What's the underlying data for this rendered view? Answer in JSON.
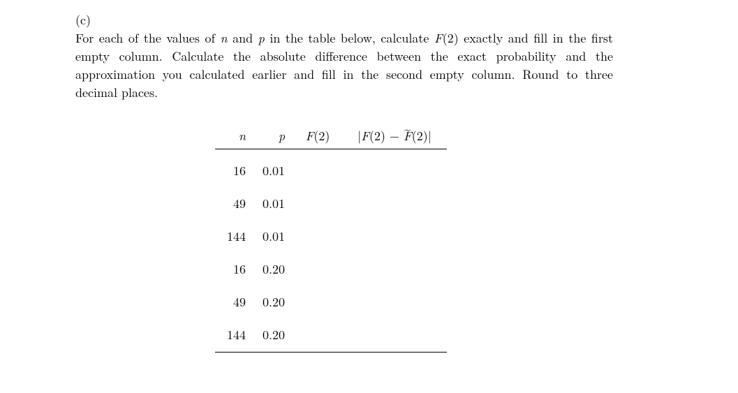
{
  "question": {
    "label": "(c)",
    "text_parts": {
      "p1": "For each of the values of ",
      "n": "n",
      "p2": " and ",
      "pvar": "p",
      "p3": " in the table below, calculate ",
      "F2": "F",
      "paren2a": "(2)",
      "p4": " exactly and fill in the first empty column. Calculate the absolute difference between the exact probability and the approximation you calculated earlier and fill in the second empty column. Round to three decimal places."
    }
  },
  "table": {
    "headers": {
      "n": "n",
      "p": "p",
      "F2": "F",
      "F2_arg": "(2)",
      "diff_open": "|",
      "diff_F": "F",
      "diff_arg1": "(2) − ",
      "diff_Ftilde": "F",
      "diff_arg2": "(2)",
      "diff_close": "|"
    },
    "rows": [
      {
        "n": "16",
        "p": "0.01",
        "F2": "",
        "diff": ""
      },
      {
        "n": "49",
        "p": "0.01",
        "F2": "",
        "diff": ""
      },
      {
        "n": "144",
        "p": "0.01",
        "F2": "",
        "diff": ""
      },
      {
        "n": "16",
        "p": "0.20",
        "F2": "",
        "diff": ""
      },
      {
        "n": "49",
        "p": "0.20",
        "F2": "",
        "diff": ""
      },
      {
        "n": "144",
        "p": "0.20",
        "F2": "",
        "diff": ""
      }
    ],
    "col_align": {
      "n": "right",
      "p": "right",
      "F2": "center",
      "diff": "center"
    },
    "border_color": "#000000",
    "background_color": "#ffffff",
    "font_size_pt": 14
  }
}
